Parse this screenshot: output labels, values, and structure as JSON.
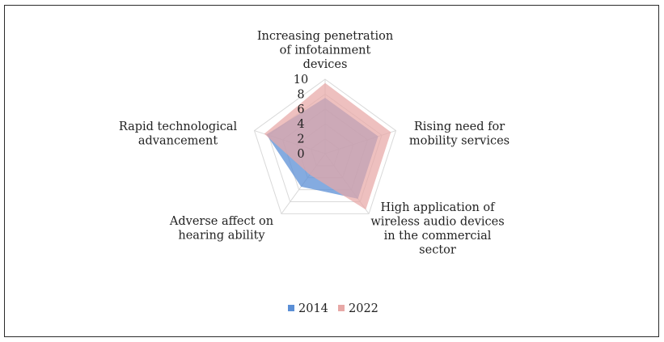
{
  "chart_data": {
    "type": "radar",
    "title": "",
    "categories": [
      "Increasing penetration of infotainment devices",
      "Rising need for mobility services",
      "High application of wireless audio devices in the commercial sector",
      "Adverse affect on hearing ability",
      "Rapid technological advancement"
    ],
    "category_lines": [
      [
        "Increasing penetration",
        "of infotainment",
        "devices"
      ],
      [
        "Rising need for",
        "mobility services"
      ],
      [
        "High application of",
        "wireless audio devices",
        "in the commercial",
        "sector"
      ],
      [
        "Adverse affect on",
        "hearing ability"
      ],
      [
        "Rapid technological",
        "advancement"
      ]
    ],
    "series": [
      {
        "name": "2014",
        "values": [
          7.5,
          7.5,
          7.5,
          5.5,
          8.3
        ],
        "color": "#5b8fd6",
        "opacity": 0.75
      },
      {
        "name": "2022",
        "values": [
          9.5,
          9.3,
          9.3,
          3.5,
          8.6
        ],
        "color": "#e7a8a6",
        "opacity": 0.72
      }
    ],
    "ticks": [
      "0",
      "2",
      "4",
      "6",
      "8",
      "10"
    ],
    "rmin": 0,
    "rmax": 10,
    "grid_color": "#d9d9d9",
    "legend_position": "bottom"
  }
}
